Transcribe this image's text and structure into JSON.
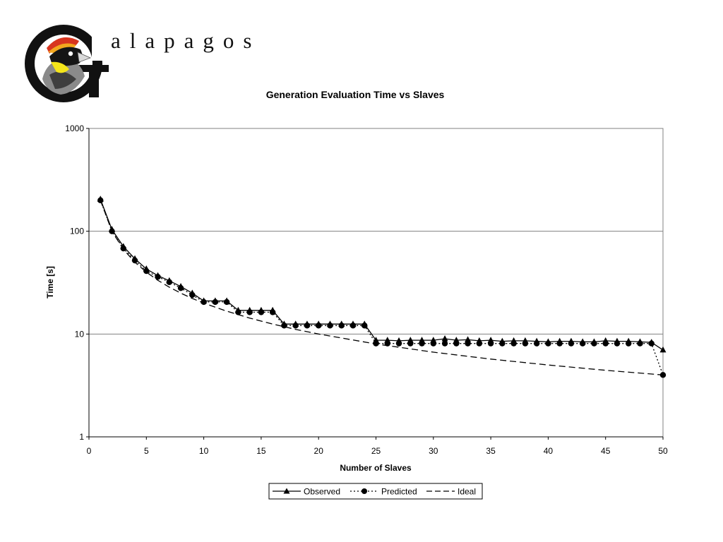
{
  "brand": {
    "name": "alapagos",
    "colors": {
      "dark": "#111111",
      "grey": "#8a8a8a",
      "red": "#d8351f",
      "orange": "#f2a71e",
      "yellow": "#f4e51a"
    }
  },
  "chart_data": {
    "type": "line",
    "title": "Generation Evaluation Time vs Slaves",
    "xlabel": "Number of Slaves",
    "ylabel": "Time [s]",
    "xlim": [
      0,
      50
    ],
    "ylim": [
      1,
      1000
    ],
    "yscale": "log",
    "xticks": [
      0,
      5,
      10,
      15,
      20,
      25,
      30,
      35,
      40,
      45,
      50
    ],
    "yticks": [
      1,
      10,
      100,
      1000
    ],
    "ytick_labels": [
      "1",
      "10",
      "100",
      "1000"
    ],
    "grid": "horizontal",
    "legend_position": "bottom-center",
    "series": [
      {
        "name": "Observed",
        "marker": "triangle",
        "line": "solid",
        "x": [
          1,
          2,
          3,
          4,
          5,
          6,
          7,
          8,
          9,
          10,
          11,
          12,
          13,
          14,
          15,
          16,
          17,
          18,
          19,
          20,
          21,
          22,
          23,
          24,
          25,
          26,
          27,
          28,
          29,
          30,
          31,
          32,
          33,
          34,
          35,
          36,
          37,
          38,
          39,
          40,
          41,
          42,
          43,
          44,
          45,
          46,
          47,
          48,
          49,
          50
        ],
        "values": [
          205,
          104,
          71,
          54,
          43,
          37,
          33,
          29,
          25,
          21,
          21,
          21,
          17,
          17,
          17,
          17,
          12.5,
          12.5,
          12.5,
          12.5,
          12.5,
          12.5,
          12.5,
          12.5,
          8.7,
          8.7,
          8.6,
          8.7,
          8.7,
          8.7,
          9.0,
          8.7,
          8.8,
          8.6,
          8.7,
          8.5,
          8.6,
          8.6,
          8.5,
          8.4,
          8.5,
          8.5,
          8.4,
          8.4,
          8.6,
          8.5,
          8.5,
          8.4,
          8.3,
          7.0
        ]
      },
      {
        "name": "Predicted",
        "marker": "circle",
        "line": "dotted",
        "x": [
          1,
          2,
          3,
          4,
          5,
          6,
          7,
          8,
          9,
          10,
          11,
          12,
          13,
          14,
          15,
          16,
          17,
          18,
          19,
          20,
          21,
          22,
          23,
          24,
          25,
          26,
          27,
          28,
          29,
          30,
          31,
          32,
          33,
          34,
          35,
          36,
          37,
          38,
          39,
          40,
          41,
          42,
          43,
          44,
          45,
          46,
          47,
          48,
          49,
          50
        ],
        "values": [
          200,
          100,
          68,
          52,
          41,
          36,
          32,
          28,
          24,
          20.5,
          20.5,
          20.5,
          16.3,
          16.3,
          16.3,
          16.3,
          12.1,
          12.1,
          12.1,
          12.1,
          12.1,
          12.1,
          12.1,
          12.1,
          8.1,
          8.1,
          8.1,
          8.1,
          8.1,
          8.1,
          8.1,
          8.1,
          8.1,
          8.1,
          8.1,
          8.1,
          8.1,
          8.1,
          8.1,
          8.1,
          8.1,
          8.1,
          8.1,
          8.1,
          8.1,
          8.1,
          8.1,
          8.1,
          8.1,
          4.0
        ]
      },
      {
        "name": "Ideal",
        "marker": "none",
        "line": "dashed",
        "x": [
          1,
          2,
          3,
          4,
          5,
          6,
          7,
          8,
          9,
          10,
          12,
          14,
          16,
          18,
          20,
          25,
          30,
          35,
          40,
          45,
          50
        ],
        "values": [
          200,
          100,
          66.7,
          50,
          40,
          33.3,
          28.6,
          25,
          22.2,
          20,
          16.7,
          14.3,
          12.5,
          11.1,
          10,
          8,
          6.67,
          5.71,
          5,
          4.44,
          4
        ]
      }
    ]
  }
}
